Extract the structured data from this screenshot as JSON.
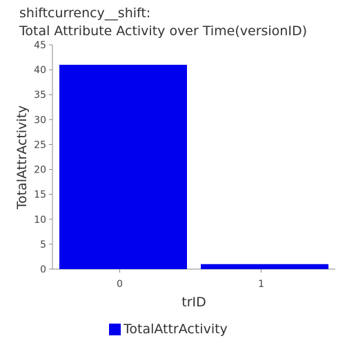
{
  "chart_data": {
    "type": "bar",
    "title_line1": "shiftcurrency__shift:",
    "title_line2": "Total Attribute Activity over Time(versionID)",
    "xlabel": "trID",
    "ylabel": "TotalAttrActivity",
    "categories": [
      "0",
      "1"
    ],
    "series": [
      {
        "name": "TotalAttrActivity",
        "values": [
          41,
          1
        ],
        "color": "#0000ee"
      }
    ],
    "ylim": [
      0,
      45
    ],
    "yticks": [
      "0",
      "5",
      "10",
      "15",
      "20",
      "25",
      "30",
      "35",
      "40",
      "45"
    ],
    "grid": false,
    "legend_position": "bottom"
  }
}
